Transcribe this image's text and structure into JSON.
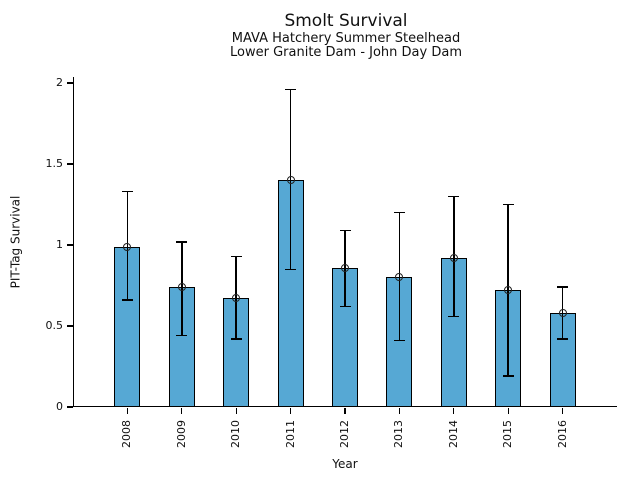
{
  "header": {
    "title": "Smolt Survival",
    "subtitle1": "MAVA Hatchery Summer Steelhead",
    "subtitle2": "Lower Granite Dam - John Day Dam"
  },
  "chart_data": {
    "type": "bar",
    "title": "Smolt Survival",
    "subtitle": [
      "MAVA Hatchery Summer Steelhead",
      "Lower Granite Dam - John Day Dam"
    ],
    "categories": [
      "2008",
      "2009",
      "2010",
      "2011",
      "2012",
      "2013",
      "2014",
      "2015",
      "2016"
    ],
    "values": [
      0.99,
      0.74,
      0.67,
      1.4,
      0.86,
      0.8,
      0.92,
      0.72,
      0.58
    ],
    "error_low": [
      0.66,
      0.44,
      0.42,
      0.85,
      0.62,
      0.41,
      0.56,
      0.19,
      0.42
    ],
    "error_high": [
      1.33,
      1.02,
      0.93,
      1.96,
      1.09,
      1.2,
      1.3,
      1.25,
      0.74
    ],
    "xlabel": "Year",
    "ylabel": "PIT-Tag Survival",
    "ylim": [
      0,
      2.04
    ],
    "yticks": [
      0,
      0.5,
      1,
      1.5,
      2
    ],
    "ytick_labels": [
      "0",
      "0.5",
      "1",
      "1.5",
      "2"
    ],
    "bar_color": "#56A8D4",
    "edge_color": "#000000",
    "error_color": "#000000",
    "marker": "open-circle",
    "grid": false,
    "legend": null
  }
}
